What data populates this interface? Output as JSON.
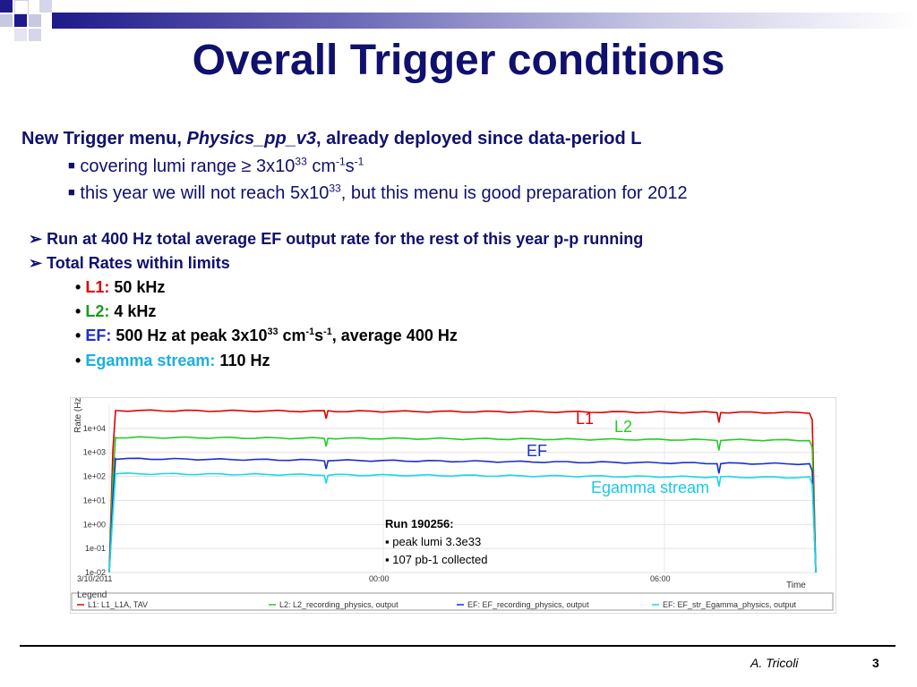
{
  "title": "Overall Trigger conditions",
  "intro": {
    "lead": "New Trigger menu,",
    "menu_name": "Physics_pp_v3",
    "tail": ", already deployed since data-period L",
    "bullets": [
      {
        "text": "covering lumi range ≥ 3x10",
        "exp": "33",
        "unit1": " cm",
        "exp1": "-1",
        "unit2": "s",
        "exp2": "-1"
      },
      {
        "text": "this year we will not reach 5x10",
        "exp": "33",
        "rest": ", but this menu is good preparation for 2012"
      }
    ]
  },
  "points": [
    "Run at 400 Hz total average EF output rate for the rest of this year p-p running",
    "Total Rates within limits"
  ],
  "rates": [
    {
      "label": "L1:",
      "value": "50 kHz",
      "color": "#e00000"
    },
    {
      "label": "L2:",
      "value": "4 kHz",
      "color": "#1a9a1a"
    },
    {
      "label": "EF:",
      "value": "500 Hz at peak 3x10",
      "color": "#1b2fc8",
      "exp": "33",
      "unit1": " cm",
      "exp1": "-1",
      "unit2": "s",
      "exp2": "-1",
      "rest": ", average 400 Hz"
    },
    {
      "label": "Egamma stream:",
      "value": "110 Hz",
      "color": "#1ab0e0"
    }
  ],
  "chart_data": {
    "type": "line",
    "ylabel": "Rate (Hz)",
    "xlabel": "Time",
    "y_scale": "log",
    "ylim": [
      0.01,
      100000
    ],
    "y_ticks": [
      "1e+04",
      "1e+03",
      "1e+02",
      "1e+01",
      "1e+00",
      "1e-01",
      "1e-02"
    ],
    "x_ticks": [
      "3/10/2011",
      "00:00",
      "06:00"
    ],
    "series": [
      {
        "name": "L1: L1_L1A, TAV",
        "color": "#e00000",
        "y_start": 55000,
        "y_end": 45000
      },
      {
        "name": "L2: L2_recording_physics, output",
        "color": "#22cc22",
        "y_start": 4200,
        "y_end": 3200
      },
      {
        "name": "EF: EF_recording_physics, output",
        "color": "#1b2fc8",
        "y_start": 550,
        "y_end": 330
      },
      {
        "name": "EF: EF_str_Egamma_physics, output",
        "color": "#19d8e8",
        "y_start": 130,
        "y_end": 90
      }
    ],
    "legend_title": "Legend",
    "annotations": {
      "l1": "L1",
      "l2": "L2",
      "ef": "EF",
      "egamma": "Egamma stream"
    },
    "run_box": {
      "title": "Run 190256:",
      "items": [
        "peak lumi 3.3e33",
        "107 pb-1 collected"
      ]
    }
  },
  "footer": {
    "author": "A. Tricoli",
    "page": "3"
  }
}
